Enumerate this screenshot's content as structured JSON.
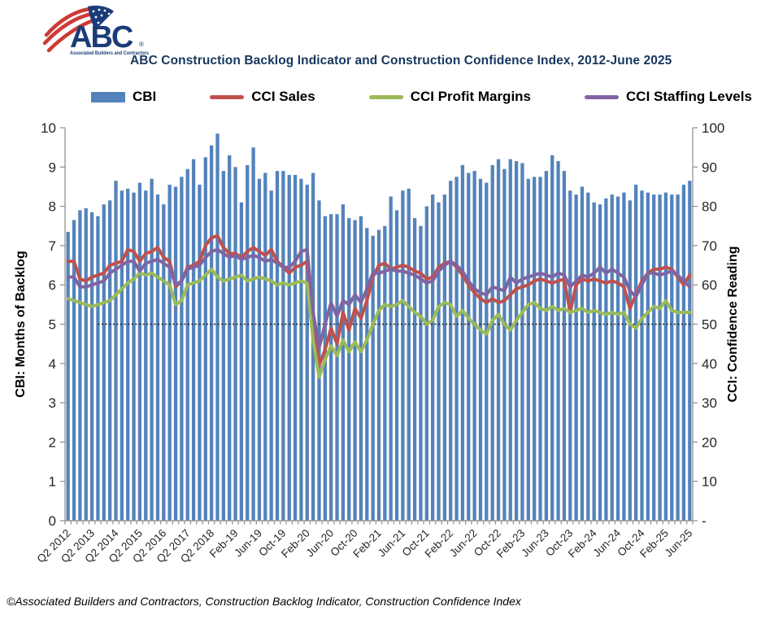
{
  "logo": {
    "abbr": "ABC",
    "registered": "®",
    "tagline": "Associated Builders and Contractors",
    "navy": "#1B3C78",
    "red": "#CE3A34"
  },
  "header": {
    "title": "ABC Construction Backlog Indicator and Construction Confidence Index, 2012-June 2025"
  },
  "legend": {
    "items": [
      {
        "label": "CBI",
        "color": "#5483BB",
        "shape": "bar"
      },
      {
        "label": "CCI Sales",
        "color": "#C0504D",
        "shape": "line"
      },
      {
        "label": "CCI Profit Margins",
        "color": "#9BBB59",
        "shape": "line"
      },
      {
        "label": "CCI Staffing Levels",
        "color": "#8064A2",
        "shape": "line"
      }
    ]
  },
  "footer": {
    "credit": "©Associated Builders and Contractors, Construction Backlog Indicator, Construction Confidence Index"
  },
  "chart_data": {
    "type": "bar+line",
    "title": "ABC Construction Backlog Indicator and Construction Confidence Index, 2012-June 2025",
    "n_points": 105,
    "x_label_every": 4,
    "x_tick_labels": [
      "Q2 2012",
      "Q2 2013",
      "Q2 2014",
      "Q2 2015",
      "Q2 2016",
      "Q2 2017",
      "Q2 2018",
      "Feb-19",
      "Jun-19",
      "Oct-19",
      "Feb-20",
      "Jun-20",
      "Oct-20",
      "Feb-21",
      "Jun-21",
      "Oct-21",
      "Feb-22",
      "Jun-22",
      "Oct-22",
      "Feb-23",
      "Jun-23",
      "Oct-23",
      "Feb-24",
      "Jun-24",
      "Oct-24",
      "Feb-25",
      "Jun-25"
    ],
    "left_axis": {
      "title": "CBI: Months of Backlog",
      "min": 0,
      "max": 10,
      "tick_labels": [
        "0",
        "1",
        "2",
        "3",
        "4",
        "5",
        "6",
        "7",
        "8",
        "9",
        "10"
      ]
    },
    "right_axis": {
      "title": "CCI: Confidence Reading",
      "min": 0,
      "max": 100,
      "tick_labels": [
        "-",
        "10",
        "20",
        "30",
        "40",
        "50",
        "60",
        "70",
        "80",
        "90",
        "100"
      ]
    },
    "reference_line": {
      "axis": "right",
      "value": 50,
      "style": "dotted",
      "color": "#1a1a1a",
      "start_index": 5
    },
    "bar_series": {
      "name": "CBI",
      "axis": "left",
      "color": "#5483BB",
      "values": [
        7.35,
        7.65,
        7.9,
        7.95,
        7.85,
        7.75,
        8.05,
        8.15,
        8.65,
        8.4,
        8.45,
        8.35,
        8.6,
        8.4,
        8.7,
        8.3,
        8.05,
        8.55,
        8.5,
        8.75,
        8.95,
        9.2,
        8.55,
        9.25,
        9.55,
        9.85,
        8.9,
        9.3,
        9.0,
        8.1,
        9.05,
        9.5,
        8.7,
        8.85,
        8.4,
        8.9,
        8.9,
        8.8,
        8.8,
        8.7,
        8.55,
        8.85,
        8.15,
        7.75,
        7.8,
        7.8,
        8.05,
        7.7,
        7.65,
        7.75,
        7.45,
        7.25,
        7.4,
        7.5,
        8.25,
        7.9,
        8.4,
        8.45,
        7.7,
        7.5,
        8.0,
        8.3,
        8.1,
        8.3,
        8.65,
        8.75,
        9.05,
        8.85,
        8.9,
        8.7,
        8.6,
        9.05,
        9.2,
        8.95,
        9.2,
        9.15,
        9.1,
        8.7,
        8.75,
        8.75,
        8.9,
        9.3,
        9.15,
        8.9,
        8.4,
        8.3,
        8.5,
        8.35,
        8.1,
        8.05,
        8.2,
        8.3,
        8.25,
        8.35,
        8.15,
        8.55,
        8.4,
        8.35,
        8.3,
        8.3,
        8.35,
        8.3,
        8.3,
        8.55,
        8.65
      ]
    },
    "line_series": [
      {
        "name": "CCI Sales",
        "axis": "right",
        "color": "#C0504D",
        "values": [
          66,
          66,
          61.5,
          61,
          62,
          62.5,
          63,
          65,
          65.5,
          66,
          69,
          68.5,
          66,
          68,
          68.5,
          69.5,
          67,
          66,
          59.5,
          61,
          64.5,
          65,
          66,
          70,
          72,
          72.5,
          69.5,
          68,
          68,
          67,
          68.5,
          69.5,
          68.5,
          67.5,
          69,
          66,
          64.5,
          63,
          64.5,
          65,
          66,
          50,
          39.5,
          43.5,
          49,
          45,
          53,
          48.5,
          54,
          51.5,
          56,
          62,
          65,
          65.5,
          64,
          64.5,
          65,
          64.5,
          63.5,
          63,
          61.5,
          62,
          64.5,
          65.5,
          66,
          64.5,
          62.5,
          60,
          58,
          56.5,
          55.5,
          56.5,
          55.5,
          56,
          57.5,
          59,
          59.5,
          60,
          61,
          61.5,
          61,
          60.5,
          61,
          61.5,
          53,
          60,
          61.5,
          61,
          61.5,
          61,
          60.5,
          61,
          60.5,
          59.5,
          54,
          57.5,
          61,
          63,
          64,
          64,
          64.5,
          64,
          62,
          60,
          62.5
        ]
      },
      {
        "name": "CCI Profit Margins",
        "axis": "right",
        "color": "#9BBB59",
        "values": [
          56.5,
          56,
          55.5,
          55,
          54.5,
          55,
          55.5,
          56,
          57.5,
          59,
          60.5,
          61.5,
          63,
          62.5,
          63,
          62,
          61,
          60,
          55,
          56,
          60,
          60.5,
          61,
          62.5,
          64,
          62,
          61,
          61.5,
          62,
          62.5,
          61,
          61.5,
          62,
          61.5,
          61,
          60,
          60.5,
          60,
          60.5,
          61,
          60.5,
          46,
          36.5,
          41,
          44.5,
          42,
          46,
          43,
          45.5,
          43,
          46,
          50,
          53.5,
          55,
          54.5,
          55,
          56,
          54.5,
          53,
          52,
          50,
          51,
          54.5,
          55.5,
          55,
          52,
          53.5,
          51.5,
          50,
          48.5,
          47.5,
          51,
          52.5,
          50,
          48.5,
          51,
          53,
          55,
          55.5,
          54,
          53.5,
          54.5,
          53.5,
          54,
          53,
          53.5,
          54,
          53,
          53.5,
          53,
          52.5,
          53,
          52.5,
          53,
          50,
          49,
          51.5,
          53,
          54.5,
          54,
          56,
          53.5,
          53,
          53,
          53
        ]
      },
      {
        "name": "CCI Staffing Levels",
        "axis": "right",
        "color": "#8064A2",
        "values": [
          62,
          62,
          59.5,
          59.5,
          60,
          60.5,
          61,
          63,
          64,
          65,
          66,
          66,
          63.5,
          65.5,
          66,
          66.5,
          65.5,
          64.5,
          60,
          61,
          64,
          64.5,
          65,
          67,
          68.5,
          69,
          68,
          67,
          67.5,
          66.5,
          67,
          67.5,
          67,
          66,
          66.5,
          65.5,
          64.5,
          64.5,
          66,
          68.5,
          69,
          53,
          44,
          50,
          55.5,
          52,
          56,
          55,
          57.5,
          55.5,
          59,
          63,
          63,
          63.5,
          64,
          63.5,
          63.5,
          63,
          62.5,
          61.5,
          60.5,
          61,
          63.5,
          65,
          66,
          65,
          63.5,
          61,
          59,
          58,
          57.5,
          59.5,
          59,
          58.5,
          62,
          60.5,
          61.5,
          62,
          62.5,
          63,
          62.5,
          62,
          63,
          62.5,
          59.5,
          61,
          62.5,
          62,
          63,
          64.5,
          63,
          64,
          63,
          62,
          58.5,
          57,
          60,
          63,
          63,
          62.5,
          63,
          63.5,
          62.5,
          61,
          59.5
        ]
      }
    ]
  }
}
